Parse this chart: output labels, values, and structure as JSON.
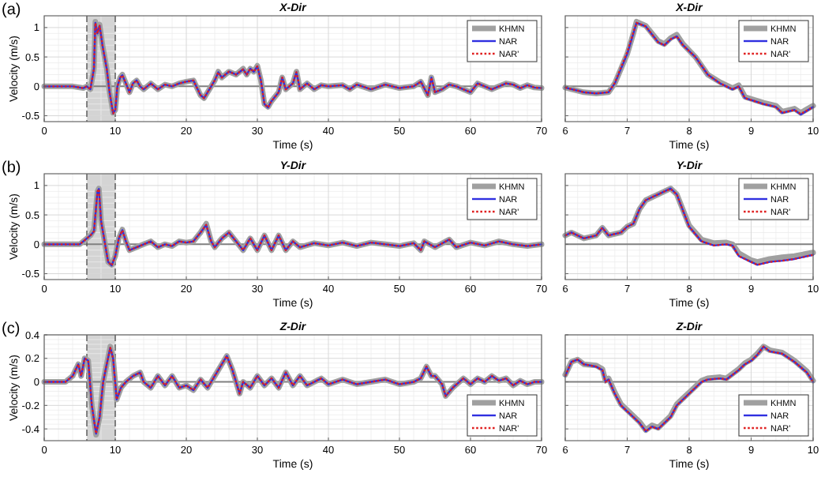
{
  "chart_data": [
    {
      "type": "line",
      "title": "X-Dir",
      "xlabel": "Time (s)",
      "ylabel": "Velocity (m/s)",
      "annotations": [
        "(a)"
      ],
      "xlim": [
        0,
        70
      ],
      "xticks": [
        0,
        10,
        20,
        30,
        40,
        50,
        60,
        70
      ],
      "ylim": [
        -0.6,
        1.2
      ],
      "yticks": [
        -0.5,
        0,
        0.5,
        1
      ],
      "grid": true,
      "legend": "top right",
      "bands": [
        {
          "axis": "x",
          "from": 6,
          "to": 10,
          "color": "#d4d4d4"
        }
      ],
      "ref_lines": [
        {
          "axis": "y",
          "value": 0,
          "color": "#808080"
        },
        {
          "axis": "x",
          "value": 6,
          "color": "#555555",
          "line_style": "dashed"
        },
        {
          "axis": "x",
          "value": 10,
          "color": "#555555",
          "line_style": "dashed"
        }
      ],
      "x": [
        0,
        4,
        5,
        5.5,
        6,
        6.5,
        7,
        7.2,
        7.5,
        7.8,
        8.2,
        8.8,
        9.2,
        9.7,
        10,
        10.3,
        10.7,
        11,
        11.5,
        12,
        12.5,
        13,
        13.5,
        14,
        15,
        16,
        17,
        18,
        19,
        20,
        21,
        22,
        22.5,
        23,
        24,
        24.5,
        25,
        26,
        27,
        28,
        28.5,
        29,
        29.5,
        30,
        30.5,
        31,
        31.5,
        32,
        33,
        33.5,
        34,
        35,
        35.5,
        36,
        37,
        38,
        39,
        40,
        42,
        43,
        44,
        46,
        48,
        50,
        52,
        53,
        54,
        54.5,
        55,
        56,
        57,
        58,
        59,
        60,
        61,
        62,
        63,
        64,
        65,
        66,
        67,
        68,
        69,
        70
      ],
      "series": [
        {
          "name": "KHMN",
          "color": "#a0a0a0",
          "values": [
            0,
            0,
            -0.02,
            -0.03,
            0,
            -0.05,
            0.3,
            1.1,
            0.9,
            1.05,
            0.7,
            0.3,
            -0.1,
            -0.45,
            -0.4,
            0,
            0.15,
            0.2,
            0.05,
            -0.1,
            0.05,
            0.1,
            0,
            -0.05,
            0.05,
            -0.05,
            0.03,
            0,
            0.05,
            0.08,
            0.1,
            -0.15,
            -0.2,
            -0.1,
            0.1,
            0.25,
            0.15,
            0.25,
            0.2,
            0.3,
            0.2,
            0.3,
            0.25,
            0.35,
            0.1,
            -0.3,
            -0.35,
            -0.25,
            -0.1,
            0.15,
            -0.05,
            0.05,
            0.25,
            -0.05,
            0.05,
            -0.05,
            0.02,
            0,
            0.02,
            -0.05,
            0.03,
            -0.05,
            0.03,
            -0.03,
            0,
            0.08,
            -0.15,
            0.15,
            -0.1,
            -0.05,
            0.03,
            0,
            -0.05,
            -0.1,
            0.05,
            0,
            -0.05,
            0,
            0.05,
            0.03,
            -0.03,
            0.02,
            -0.02,
            -0.03
          ]
        },
        {
          "name": "NAR",
          "color": "#3030e0",
          "values": [
            0,
            0,
            -0.02,
            -0.03,
            0,
            -0.05,
            0.3,
            1.08,
            0.9,
            1.03,
            0.7,
            0.3,
            -0.1,
            -0.46,
            -0.4,
            0,
            0.15,
            0.19,
            0.05,
            -0.1,
            0.05,
            0.1,
            0,
            -0.05,
            0.05,
            -0.05,
            0.03,
            0,
            0.05,
            0.08,
            0.1,
            -0.15,
            -0.2,
            -0.1,
            0.1,
            0.24,
            0.15,
            0.25,
            0.2,
            0.29,
            0.2,
            0.3,
            0.25,
            0.34,
            0.1,
            -0.3,
            -0.36,
            -0.25,
            -0.1,
            0.15,
            -0.05,
            0.05,
            0.24,
            -0.05,
            0.05,
            -0.05,
            0.02,
            0,
            0.02,
            -0.05,
            0.03,
            -0.05,
            0.03,
            -0.03,
            0,
            0.08,
            -0.15,
            0.15,
            -0.1,
            -0.05,
            0.03,
            0,
            -0.05,
            -0.1,
            0.05,
            0,
            -0.05,
            0,
            0.05,
            0.03,
            -0.03,
            0.02,
            -0.02,
            -0.03
          ]
        },
        {
          "name": "NAR'",
          "color": "#e02020",
          "line_style": "dotted",
          "values": [
            0,
            0,
            -0.02,
            -0.03,
            0,
            -0.05,
            0.3,
            1.08,
            0.9,
            1.03,
            0.7,
            0.3,
            -0.1,
            -0.46,
            -0.4,
            0,
            0.15,
            0.19,
            0.05,
            -0.1,
            0.05,
            0.1,
            0,
            -0.05,
            0.05,
            -0.05,
            0.03,
            0,
            0.05,
            0.08,
            0.1,
            -0.15,
            -0.2,
            -0.1,
            0.1,
            0.24,
            0.15,
            0.25,
            0.2,
            0.29,
            0.2,
            0.3,
            0.25,
            0.34,
            0.1,
            -0.3,
            -0.36,
            -0.25,
            -0.1,
            0.15,
            -0.05,
            0.05,
            0.24,
            -0.05,
            0.05,
            -0.05,
            0.02,
            0,
            0.02,
            -0.05,
            0.03,
            -0.05,
            0.03,
            -0.03,
            0,
            0.08,
            -0.15,
            0.15,
            -0.1,
            -0.05,
            0.03,
            0,
            -0.05,
            -0.1,
            0.05,
            0,
            -0.05,
            0,
            0.05,
            0.03,
            -0.03,
            0.02,
            -0.02,
            -0.03
          ]
        }
      ]
    },
    {
      "type": "line",
      "title": "X-Dir",
      "xlabel": "Time (s)",
      "xlim": [
        6,
        10
      ],
      "xticks": [
        6,
        7,
        8,
        9,
        10
      ],
      "ylim": [
        -0.6,
        1.2
      ],
      "yticks": [
        -0.5,
        0,
        0.5,
        1
      ],
      "tick_labels": "x",
      "grid": true,
      "legend": "top right",
      "ref_lines": [
        {
          "axis": "y",
          "value": 0,
          "color": "#808080"
        }
      ],
      "x": [
        6,
        6.3,
        6.5,
        6.7,
        6.8,
        7,
        7.1,
        7.15,
        7.3,
        7.5,
        7.6,
        7.7,
        7.8,
        7.9,
        8.1,
        8.3,
        8.5,
        8.7,
        8.8,
        8.9,
        9.2,
        9.4,
        9.5,
        9.7,
        9.8,
        10
      ],
      "series": [
        {
          "name": "KHMN",
          "color": "#a0a0a0",
          "values": [
            -0.02,
            -0.1,
            -0.12,
            -0.1,
            0.05,
            0.55,
            0.9,
            1.1,
            1.03,
            0.77,
            0.72,
            0.82,
            0.88,
            0.72,
            0.5,
            0.2,
            0.07,
            -0.03,
            0.02,
            -0.18,
            -0.28,
            -0.33,
            -0.43,
            -0.38,
            -0.45,
            -0.33
          ]
        },
        {
          "name": "NAR",
          "color": "#3030e0",
          "values": [
            -0.02,
            -0.1,
            -0.12,
            -0.1,
            0.05,
            0.55,
            0.9,
            1.08,
            1.02,
            0.75,
            0.7,
            0.8,
            0.85,
            0.7,
            0.5,
            0.2,
            0.05,
            -0.05,
            0,
            -0.2,
            -0.3,
            -0.35,
            -0.45,
            -0.4,
            -0.48,
            -0.35
          ]
        },
        {
          "name": "NAR'",
          "color": "#e02020",
          "line_style": "dotted",
          "values": [
            -0.02,
            -0.1,
            -0.12,
            -0.1,
            0.06,
            0.58,
            0.92,
            1.08,
            1.02,
            0.75,
            0.7,
            0.8,
            0.85,
            0.7,
            0.5,
            0.2,
            0.05,
            -0.05,
            0,
            -0.2,
            -0.3,
            -0.35,
            -0.45,
            -0.4,
            -0.47,
            -0.35
          ]
        }
      ]
    },
    {
      "type": "line",
      "title": "Y-Dir",
      "xlabel": "Time (s)",
      "ylabel": "Velocity (m/s)",
      "annotations": [
        "(b)"
      ],
      "xlim": [
        0,
        70
      ],
      "xticks": [
        0,
        10,
        20,
        30,
        40,
        50,
        60,
        70
      ],
      "ylim": [
        -0.6,
        1.2
      ],
      "yticks": [
        -0.5,
        0,
        0.5,
        1
      ],
      "grid": true,
      "legend": "top right",
      "bands": [
        {
          "axis": "x",
          "from": 6,
          "to": 10,
          "color": "#d4d4d4"
        }
      ],
      "ref_lines": [
        {
          "axis": "y",
          "value": 0,
          "color": "#808080"
        },
        {
          "axis": "x",
          "value": 6,
          "color": "#555555",
          "line_style": "dashed"
        },
        {
          "axis": "x",
          "value": 10,
          "color": "#555555",
          "line_style": "dashed"
        }
      ],
      "x": [
        0,
        5,
        6,
        6.5,
        7,
        7.5,
        7.7,
        8,
        8.5,
        9,
        9.5,
        10,
        10.5,
        11,
        11.5,
        12,
        13,
        14,
        15,
        16,
        17,
        18,
        19,
        20,
        21,
        22,
        22.8,
        23.5,
        24,
        25,
        26,
        27,
        28,
        29,
        30,
        31,
        32,
        33,
        34,
        35,
        36,
        38,
        40,
        42,
        44,
        46,
        48,
        50,
        52,
        53,
        53.5,
        55,
        57,
        58,
        60,
        62,
        64,
        66,
        68,
        70
      ],
      "series": [
        {
          "name": "KHMN",
          "color": "#a0a0a0",
          "values": [
            0,
            0,
            0.1,
            0.15,
            0.25,
            0.9,
            0.95,
            0.4,
            0.05,
            -0.3,
            -0.35,
            -0.2,
            0.1,
            0.25,
            0.05,
            -0.1,
            -0.05,
            0,
            0.05,
            -0.05,
            0,
            -0.03,
            0.05,
            0.03,
            0.05,
            0.2,
            0.35,
            0.05,
            -0.05,
            0.1,
            0.2,
            0.05,
            -0.1,
            0.1,
            -0.1,
            0.15,
            -0.1,
            0.15,
            -0.1,
            0.05,
            -0.05,
            0.02,
            -0.02,
            0.03,
            -0.03,
            0.03,
            0,
            -0.03,
            0.02,
            -0.1,
            0.05,
            -0.05,
            0.08,
            -0.05,
            0.03,
            -0.02,
            0.05,
            0,
            -0.03,
            0
          ]
        },
        {
          "name": "NAR",
          "color": "#3030e0",
          "values": [
            0,
            0,
            0.1,
            0.15,
            0.22,
            0.9,
            0.94,
            0.4,
            0.05,
            -0.3,
            -0.36,
            -0.2,
            0.1,
            0.24,
            0.05,
            -0.1,
            -0.05,
            0,
            0.05,
            -0.05,
            0,
            -0.03,
            0.05,
            0.03,
            0.05,
            0.2,
            0.33,
            0.05,
            -0.05,
            0.1,
            0.2,
            0.05,
            -0.1,
            0.1,
            -0.1,
            0.15,
            -0.1,
            0.15,
            -0.1,
            0.05,
            -0.05,
            0.02,
            -0.02,
            0.03,
            -0.03,
            0.03,
            0,
            -0.03,
            0.02,
            -0.1,
            0.05,
            -0.05,
            0.08,
            -0.05,
            0.03,
            -0.02,
            0.05,
            0,
            -0.03,
            0
          ]
        },
        {
          "name": "NAR'",
          "color": "#e02020",
          "line_style": "dotted",
          "values": [
            0,
            0,
            0.1,
            0.15,
            0.22,
            0.9,
            0.94,
            0.4,
            0.05,
            -0.3,
            -0.36,
            -0.2,
            0.1,
            0.24,
            0.05,
            -0.1,
            -0.05,
            0,
            0.05,
            -0.05,
            0,
            -0.03,
            0.05,
            0.03,
            0.05,
            0.2,
            0.33,
            0.05,
            -0.05,
            0.1,
            0.2,
            0.05,
            -0.1,
            0.1,
            -0.1,
            0.15,
            -0.1,
            0.15,
            -0.1,
            0.05,
            -0.05,
            0.02,
            -0.02,
            0.03,
            -0.03,
            0.03,
            0,
            -0.03,
            0.02,
            -0.1,
            0.05,
            -0.05,
            0.08,
            -0.05,
            0.03,
            -0.02,
            0.05,
            0,
            -0.03,
            0
          ]
        }
      ]
    },
    {
      "type": "line",
      "title": "Y-Dir",
      "xlabel": "Time (s)",
      "xlim": [
        6,
        10
      ],
      "xticks": [
        6,
        7,
        8,
        9,
        10
      ],
      "ylim": [
        -0.6,
        1.2
      ],
      "yticks": [
        -0.5,
        0,
        0.5,
        1
      ],
      "tick_labels": "x",
      "grid": true,
      "legend": "top right",
      "ref_lines": [
        {
          "axis": "y",
          "value": 0,
          "color": "#808080"
        }
      ],
      "x": [
        6,
        6.1,
        6.2,
        6.3,
        6.5,
        6.6,
        6.7,
        6.9,
        7,
        7.1,
        7.2,
        7.3,
        7.4,
        7.5,
        7.6,
        7.7,
        7.8,
        8,
        8.2,
        8.4,
        8.6,
        8.7,
        8.8,
        9,
        9.1,
        9.3,
        9.5,
        9.7,
        10
      ],
      "series": [
        {
          "name": "KHMN",
          "color": "#a0a0a0",
          "values": [
            0.15,
            0.2,
            0.15,
            0.1,
            0.15,
            0.28,
            0.15,
            0.2,
            0.3,
            0.35,
            0.6,
            0.75,
            0.8,
            0.85,
            0.9,
            0.95,
            0.85,
            0.32,
            0.08,
            0.02,
            0.03,
            0,
            -0.15,
            -0.27,
            -0.3,
            -0.25,
            -0.22,
            -0.2,
            -0.14
          ]
        },
        {
          "name": "NAR",
          "color": "#3030e0",
          "values": [
            0.15,
            0.2,
            0.15,
            0.1,
            0.15,
            0.28,
            0.15,
            0.2,
            0.3,
            0.35,
            0.6,
            0.75,
            0.8,
            0.85,
            0.9,
            0.95,
            0.85,
            0.3,
            0.05,
            -0.02,
            0,
            -0.02,
            -0.2,
            -0.3,
            -0.35,
            -0.3,
            -0.28,
            -0.25,
            -0.18
          ]
        },
        {
          "name": "NAR'",
          "color": "#e02020",
          "line_style": "dotted",
          "values": [
            0.15,
            0.2,
            0.15,
            0.1,
            0.15,
            0.28,
            0.15,
            0.2,
            0.3,
            0.35,
            0.6,
            0.75,
            0.8,
            0.85,
            0.9,
            0.94,
            0.85,
            0.3,
            0.05,
            -0.02,
            0,
            -0.02,
            -0.2,
            -0.3,
            -0.35,
            -0.3,
            -0.28,
            -0.25,
            -0.18
          ]
        }
      ]
    },
    {
      "type": "line",
      "title": "Z-Dir",
      "xlabel": "Time (s)",
      "ylabel": "Velocity (m/s)",
      "annotations": [
        "(c)"
      ],
      "xlim": [
        0,
        70
      ],
      "xticks": [
        0,
        10,
        20,
        30,
        40,
        50,
        60,
        70
      ],
      "ylim": [
        -0.5,
        0.4
      ],
      "yticks": [
        -0.4,
        -0.2,
        0,
        0.2,
        0.4
      ],
      "grid": true,
      "legend": "bottom right",
      "bands": [
        {
          "axis": "x",
          "from": 6,
          "to": 10,
          "color": "#d4d4d4"
        }
      ],
      "ref_lines": [
        {
          "axis": "y",
          "value": 0,
          "color": "#808080"
        },
        {
          "axis": "x",
          "value": 6,
          "color": "#555555",
          "line_style": "dashed"
        },
        {
          "axis": "x",
          "value": 10,
          "color": "#555555",
          "line_style": "dashed"
        }
      ],
      "x": [
        0,
        3,
        4,
        4.8,
        5.2,
        5.7,
        6.2,
        6.7,
        7.3,
        7.8,
        8.3,
        8.8,
        9.3,
        9.7,
        10.2,
        10.8,
        11.5,
        12.5,
        13.5,
        14,
        15,
        16,
        17,
        18,
        19,
        20,
        21,
        22,
        23,
        24,
        25,
        25.7,
        26.5,
        27.5,
        28,
        29,
        30,
        31,
        32,
        33,
        34,
        35,
        36,
        37,
        38,
        39,
        40,
        42,
        44,
        46,
        48,
        50,
        52,
        53,
        53.8,
        54.5,
        55,
        56,
        56.5,
        57.5,
        59,
        60,
        61,
        62,
        63,
        64,
        65,
        66,
        67,
        68,
        69,
        70
      ],
      "series": [
        {
          "name": "KHMN",
          "color": "#a0a0a0",
          "values": [
            0,
            0,
            0.05,
            0.15,
            0.05,
            0.2,
            0.18,
            -0.2,
            -0.45,
            -0.3,
            0,
            0.15,
            0.3,
            0.2,
            -0.15,
            -0.05,
            0,
            0.05,
            0.08,
            0,
            -0.05,
            0.05,
            -0.03,
            0.05,
            -0.05,
            -0.03,
            -0.07,
            0.02,
            -0.05,
            0.05,
            0.15,
            0.22,
            0.1,
            -0.1,
            0,
            -0.05,
            0.05,
            -0.03,
            0.03,
            -0.05,
            0.08,
            -0.03,
            0.05,
            -0.03,
            0,
            0.03,
            -0.02,
            0.02,
            -0.02,
            0,
            0.02,
            -0.02,
            0,
            0.03,
            0.13,
            0.05,
            0.05,
            -0.02,
            -0.12,
            -0.05,
            0.03,
            -0.02,
            0.03,
            0,
            0.05,
            0.01,
            0.03,
            -0.03,
            0.01,
            -0.02,
            0,
            0
          ]
        },
        {
          "name": "NAR",
          "color": "#3030e0",
          "values": [
            0,
            0,
            0.05,
            0.15,
            0.05,
            0.2,
            0.18,
            -0.2,
            -0.44,
            -0.3,
            0,
            0.15,
            0.29,
            0.2,
            -0.15,
            -0.05,
            0,
            0.05,
            0.08,
            0,
            -0.05,
            0.05,
            -0.03,
            0.05,
            -0.05,
            -0.03,
            -0.07,
            0.02,
            -0.05,
            0.05,
            0.15,
            0.22,
            0.1,
            -0.1,
            0,
            -0.05,
            0.05,
            -0.03,
            0.03,
            -0.05,
            0.08,
            -0.03,
            0.05,
            -0.03,
            0,
            0.03,
            -0.02,
            0.02,
            -0.02,
            0,
            0.02,
            -0.02,
            0,
            0.03,
            0.13,
            0.05,
            0.05,
            -0.02,
            -0.12,
            -0.05,
            0.03,
            -0.02,
            0.03,
            0,
            0.05,
            0.01,
            0.03,
            -0.03,
            0.01,
            -0.02,
            0,
            0
          ]
        },
        {
          "name": "NAR'",
          "color": "#e02020",
          "line_style": "dotted",
          "values": [
            0,
            0,
            0.05,
            0.15,
            0.05,
            0.2,
            0.18,
            -0.2,
            -0.44,
            -0.3,
            0,
            0.15,
            0.29,
            0.2,
            -0.15,
            -0.05,
            0,
            0.05,
            0.08,
            0,
            -0.05,
            0.05,
            -0.03,
            0.05,
            -0.05,
            -0.03,
            -0.07,
            0.02,
            -0.05,
            0.05,
            0.15,
            0.22,
            0.1,
            -0.1,
            0,
            -0.05,
            0.05,
            -0.03,
            0.03,
            -0.05,
            0.08,
            -0.03,
            0.05,
            -0.03,
            0,
            0.03,
            -0.02,
            0.02,
            -0.02,
            0,
            0.02,
            -0.02,
            0,
            0.03,
            0.13,
            0.05,
            0.05,
            -0.02,
            -0.12,
            -0.05,
            0.03,
            -0.02,
            0.03,
            0,
            0.05,
            0.01,
            0.03,
            -0.03,
            0.01,
            -0.02,
            0,
            0
          ]
        }
      ]
    },
    {
      "type": "line",
      "title": "Z-Dir",
      "xlabel": "Time (s)",
      "xlim": [
        6,
        10
      ],
      "xticks": [
        6,
        7,
        8,
        9,
        10
      ],
      "ylim": [
        -0.5,
        0.4
      ],
      "yticks": [
        -0.4,
        -0.2,
        0,
        0.2,
        0.4
      ],
      "tick_labels": "x",
      "grid": true,
      "legend": "bottom right",
      "ref_lines": [
        {
          "axis": "y",
          "value": 0,
          "color": "#808080"
        }
      ],
      "x": [
        6,
        6.1,
        6.2,
        6.3,
        6.5,
        6.6,
        6.65,
        6.7,
        6.8,
        6.9,
        7,
        7.1,
        7.2,
        7.3,
        7.4,
        7.5,
        7.6,
        7.7,
        7.8,
        7.9,
        8,
        8.1,
        8.2,
        8.3,
        8.5,
        8.6,
        8.8,
        8.9,
        9,
        9.1,
        9.2,
        9.3,
        9.5,
        9.7,
        9.9,
        10
      ],
      "series": [
        {
          "name": "KHMN",
          "color": "#a0a0a0",
          "values": [
            0.06,
            0.17,
            0.19,
            0.15,
            0.14,
            0.11,
            0.01,
            0.03,
            -0.09,
            -0.19,
            -0.24,
            -0.29,
            -0.34,
            -0.41,
            -0.37,
            -0.39,
            -0.34,
            -0.29,
            -0.19,
            -0.14,
            -0.09,
            -0.04,
            0.01,
            0.03,
            0.04,
            0.03,
            0.11,
            0.16,
            0.19,
            0.24,
            0.3,
            0.27,
            0.25,
            0.18,
            0.09,
            0.01
          ]
        },
        {
          "name": "NAR",
          "color": "#3030e0",
          "values": [
            0.05,
            0.17,
            0.19,
            0.15,
            0.13,
            0.1,
            0,
            0.02,
            -0.1,
            -0.2,
            -0.25,
            -0.3,
            -0.35,
            -0.42,
            -0.38,
            -0.4,
            -0.35,
            -0.3,
            -0.2,
            -0.15,
            -0.1,
            -0.05,
            0,
            0.02,
            0.03,
            0.02,
            0.1,
            0.15,
            0.18,
            0.23,
            0.3,
            0.26,
            0.24,
            0.17,
            0.08,
            0
          ]
        },
        {
          "name": "NAR'",
          "color": "#e02020",
          "line_style": "dotted",
          "values": [
            0.05,
            0.17,
            0.19,
            0.15,
            0.13,
            0.1,
            0,
            0.02,
            -0.1,
            -0.2,
            -0.25,
            -0.3,
            -0.35,
            -0.42,
            -0.38,
            -0.4,
            -0.35,
            -0.3,
            -0.2,
            -0.15,
            -0.1,
            -0.05,
            0,
            0.02,
            0.03,
            0.02,
            0.1,
            0.15,
            0.18,
            0.23,
            0.3,
            0.26,
            0.24,
            0.17,
            0.08,
            0
          ]
        }
      ]
    }
  ]
}
